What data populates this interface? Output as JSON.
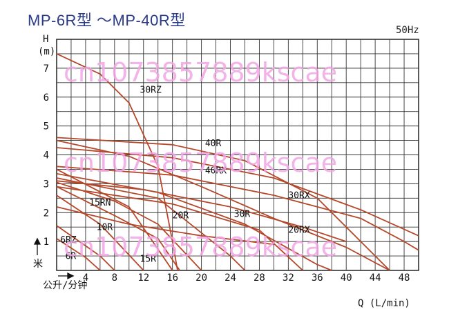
{
  "title": "MP-6R型 ～MP-40R型",
  "frequency": "50Hz",
  "watermarks": [
    "cn1073857889kscae",
    "cn1073857889kscae",
    "cn1073857889kscae"
  ],
  "chart_data": {
    "type": "line",
    "title": "MP-6R型 ～MP-40R型",
    "ylabel_top": "H",
    "ylabel_unit": "(m)",
    "ylabel_side": "米",
    "xlabel_side": "公升/分钟",
    "xlabel_bottom": "Q (L/min)",
    "xlim": [
      0,
      50
    ],
    "ylim": [
      0,
      8
    ],
    "x_ticks": [
      4,
      8,
      12,
      16,
      20,
      24,
      28,
      32,
      36,
      40,
      44,
      48
    ],
    "y_ticks": [
      1,
      2,
      3,
      4,
      5,
      6,
      7
    ],
    "grid": true,
    "series": [
      {
        "name": "6RZ",
        "points": [
          [
            0,
            1.55
          ],
          [
            6,
            0.5
          ],
          [
            8,
            0
          ]
        ],
        "label_at": [
          0.5,
          0.95
        ]
      },
      {
        "name": "6R",
        "points": [
          [
            0,
            1.1
          ],
          [
            4,
            0.45
          ],
          [
            6,
            0
          ]
        ],
        "label_at": [
          1.2,
          0.4
        ]
      },
      {
        "name": "10R",
        "points": [
          [
            0,
            2.6
          ],
          [
            6,
            1.6
          ],
          [
            12,
            0
          ]
        ],
        "label_at": [
          5.5,
          1.4
        ]
      },
      {
        "name": "15RN",
        "points": [
          [
            0,
            3.5
          ],
          [
            10,
            2.2
          ],
          [
            16,
            0
          ]
        ],
        "label_at": [
          4.5,
          2.25
        ]
      },
      {
        "name": "15R",
        "points": [
          [
            0,
            2.9
          ],
          [
            8,
            1.9
          ],
          [
            14,
            1.1
          ],
          [
            17,
            0
          ]
        ],
        "label_at": [
          11.5,
          0.3
        ]
      },
      {
        "name": "20R",
        "points": [
          [
            0,
            3.2
          ],
          [
            14,
            2.5
          ],
          [
            24,
            0.5
          ],
          [
            26,
            0
          ]
        ],
        "label_at": [
          16,
          1.8
        ]
      },
      {
        "name": "20RX",
        "points": [
          [
            0,
            3.35
          ],
          [
            14,
            2.7
          ],
          [
            26,
            1.6
          ],
          [
            36,
            0.2
          ],
          [
            38,
            0
          ]
        ],
        "label_at": [
          32,
          1.3
        ]
      },
      {
        "name": "30R",
        "points": [
          [
            0,
            2.9
          ],
          [
            16,
            2.3
          ],
          [
            28,
            1.4
          ],
          [
            34,
            0
          ]
        ],
        "label_at": [
          24.5,
          1.85
        ]
      },
      {
        "name": "30RX",
        "points": [
          [
            0,
            3.6
          ],
          [
            16,
            3.3
          ],
          [
            30,
            2.6
          ],
          [
            42,
            1.8
          ],
          [
            48,
            1.0
          ],
          [
            50,
            0.7
          ]
        ],
        "label_at": [
          32,
          2.5
        ]
      },
      {
        "name": "30RZ",
        "points": [
          [
            0,
            7.5
          ],
          [
            6,
            6.8
          ],
          [
            10,
            5.8
          ],
          [
            14,
            3.6
          ],
          [
            16,
            1.0
          ],
          [
            16.7,
            0
          ]
        ],
        "label_at": [
          11.5,
          6.15
        ]
      },
      {
        "name": "40R",
        "points": [
          [
            0,
            4.6
          ],
          [
            16,
            4.35
          ],
          [
            26,
            3.8
          ],
          [
            36,
            2.5
          ],
          [
            42,
            1.0
          ],
          [
            46,
            0
          ]
        ],
        "label_at": [
          20.5,
          4.3
        ]
      },
      {
        "name": "40RX",
        "points": [
          [
            0,
            4.25
          ],
          [
            16,
            3.9
          ],
          [
            30,
            3.2
          ],
          [
            42,
            2.1
          ],
          [
            50,
            1.2
          ]
        ],
        "label_at": [
          20.5,
          3.35
        ]
      },
      {
        "name": "",
        "points": [
          [
            0,
            4.5
          ],
          [
            10,
            3.95
          ],
          [
            20,
            2.9
          ],
          [
            30,
            1.8
          ],
          [
            40,
            0.8
          ],
          [
            46,
            0
          ]
        ]
      },
      {
        "name": "",
        "points": [
          [
            0,
            3.1
          ],
          [
            12,
            2.8
          ],
          [
            24,
            2.2
          ],
          [
            34,
            1.5
          ],
          [
            40,
            1.0
          ]
        ]
      },
      {
        "name": "",
        "points": [
          [
            0,
            2.2
          ],
          [
            10,
            1.6
          ],
          [
            20,
            1.2
          ],
          [
            30,
            0.9
          ]
        ]
      },
      {
        "name": "",
        "points": [
          [
            0,
            3.05
          ],
          [
            8,
            2.4
          ],
          [
            14,
            1.6
          ],
          [
            20,
            0
          ]
        ]
      }
    ]
  }
}
